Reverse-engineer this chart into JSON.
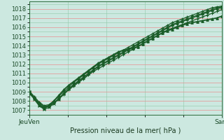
{
  "title": "Pression niveau de la mer( hPa )",
  "bg_color": "#cce8e0",
  "plot_bg_color": "#cce8e0",
  "grid_major_color": "#e89090",
  "grid_minor_color": "#90c8a8",
  "line_color": "#1a5c28",
  "ylim": [
    1006.5,
    1018.8
  ],
  "yticks": [
    1007,
    1008,
    1009,
    1010,
    1011,
    1012,
    1013,
    1014,
    1015,
    1016,
    1017,
    1018
  ],
  "x_start": 0,
  "x_end": 100,
  "xtick_positions": [
    0,
    100
  ],
  "xtick_labels": [
    "JeuVen",
    "Sam"
  ],
  "line1": [
    1008.8,
    1008.3,
    1007.8,
    1007.4,
    1007.5,
    1007.8,
    1008.2,
    1008.7,
    1009.2,
    1009.6,
    1010.0,
    1010.4,
    1010.8,
    1011.2,
    1011.5,
    1011.8,
    1012.1,
    1012.4,
    1012.7,
    1013.0,
    1013.3,
    1013.6,
    1013.9,
    1014.2,
    1014.5,
    1014.8,
    1015.1,
    1015.4,
    1015.7,
    1015.9,
    1016.1,
    1016.3,
    1016.5,
    1016.7,
    1016.9,
    1017.1,
    1017.3,
    1017.5,
    1017.7,
    1017.9
  ],
  "line2": [
    1009.1,
    1008.5,
    1007.9,
    1007.5,
    1007.6,
    1008.0,
    1008.5,
    1009.0,
    1009.5,
    1010.0,
    1010.4,
    1010.8,
    1011.2,
    1011.6,
    1012.0,
    1012.3,
    1012.6,
    1012.9,
    1013.2,
    1013.5,
    1013.8,
    1014.1,
    1014.4,
    1014.7,
    1015.0,
    1015.3,
    1015.6,
    1015.9,
    1016.2,
    1016.5,
    1016.7,
    1016.9,
    1017.1,
    1017.3,
    1017.5,
    1017.7,
    1017.9,
    1018.1,
    1018.2,
    1018.3
  ],
  "line3": [
    1009.0,
    1008.4,
    1007.7,
    1007.3,
    1007.4,
    1007.8,
    1008.3,
    1008.8,
    1009.3,
    1009.7,
    1010.1,
    1010.5,
    1010.9,
    1011.3,
    1011.7,
    1012.0,
    1012.3,
    1012.6,
    1012.9,
    1013.2,
    1013.5,
    1013.8,
    1014.1,
    1014.4,
    1014.7,
    1015.0,
    1015.3,
    1015.6,
    1015.9,
    1016.2,
    1016.4,
    1016.6,
    1016.8,
    1017.0,
    1017.2,
    1017.4,
    1017.6,
    1017.8,
    1018.0,
    1018.1
  ],
  "line4_main": [
    1009.0,
    1008.3,
    1007.6,
    1007.2,
    1007.5,
    1008.0,
    1008.6,
    1009.2,
    1009.7,
    1010.1,
    1010.5,
    1010.9,
    1011.3,
    1011.7,
    1012.1,
    1012.4,
    1012.7,
    1013.0,
    1013.3,
    1013.5,
    1013.6,
    1013.7,
    1013.9,
    1014.2,
    1014.5,
    1014.8,
    1015.1,
    1015.4,
    1015.6,
    1015.8,
    1016.0,
    1016.2,
    1016.4,
    1016.5,
    1016.6,
    1016.7,
    1016.8,
    1016.9,
    1017.0,
    1017.2
  ],
  "line5": [
    1009.0,
    1008.2,
    1007.5,
    1007.1,
    1007.3,
    1007.7,
    1008.2,
    1008.8,
    1009.3,
    1009.8,
    1010.2,
    1010.6,
    1011.0,
    1011.4,
    1011.8,
    1012.1,
    1012.4,
    1012.7,
    1013.0,
    1013.3,
    1013.6,
    1013.9,
    1014.2,
    1014.5,
    1014.8,
    1015.1,
    1015.4,
    1015.7,
    1016.0,
    1016.3,
    1016.5,
    1016.7,
    1016.9,
    1017.1,
    1017.3,
    1017.5,
    1017.7,
    1017.9,
    1018.1,
    1018.2
  ]
}
